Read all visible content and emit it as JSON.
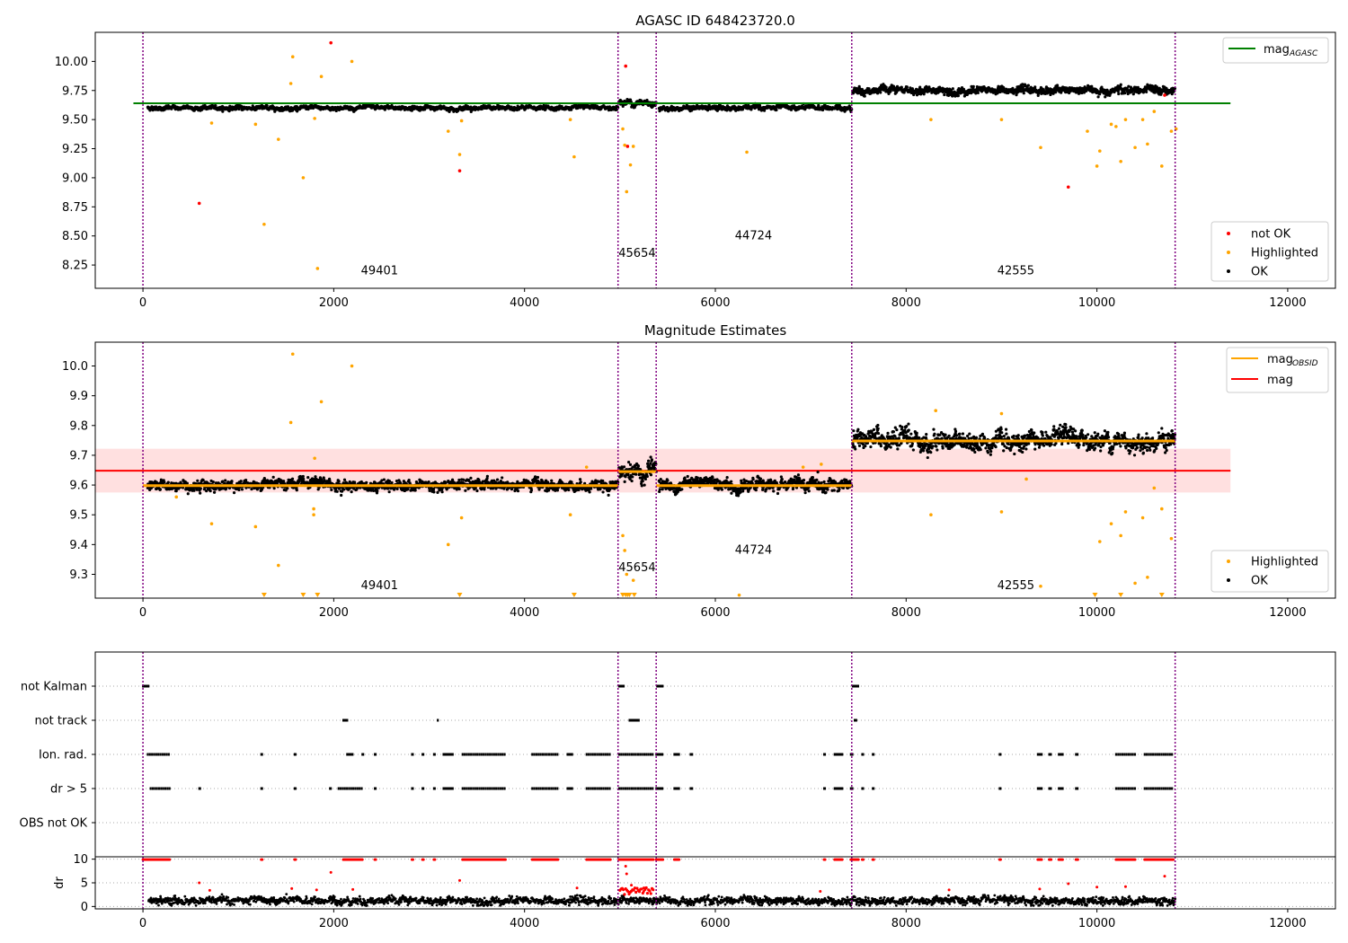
{
  "chart_data": [
    {
      "type": "scatter",
      "title": "AGASC ID 648423720.0",
      "xlim": [
        -500,
        12500
      ],
      "ylim": [
        8.05,
        10.25
      ],
      "xticks": [
        0,
        2000,
        4000,
        6000,
        8000,
        10000,
        12000
      ],
      "yticks": [
        8.25,
        8.5,
        8.75,
        9.0,
        9.25,
        9.5,
        9.75,
        10.0
      ],
      "ytick_labels": [
        "8.25",
        "8.50",
        "8.75",
        "9.00",
        "9.25",
        "9.50",
        "9.75",
        "10.00"
      ],
      "xtick_labels": [
        "0",
        "2000",
        "4000",
        "6000",
        "8000",
        "10000",
        "12000"
      ],
      "obs_boundaries": [
        0,
        4980,
        5380,
        7430,
        10820
      ],
      "obs_labels": [
        {
          "text": "49401",
          "x": 2480,
          "y": 8.17
        },
        {
          "text": "45654",
          "x": 5180,
          "y": 8.32
        },
        {
          "text": "44724",
          "x": 6400,
          "y": 8.47
        },
        {
          "text": "42555",
          "x": 9150,
          "y": 8.17
        }
      ],
      "mag_agasc": 9.64,
      "mag_agasc_xrange": [
        0,
        11400
      ],
      "ok_segments": [
        {
          "x0": 50,
          "x1": 4980,
          "mean": 9.6,
          "sd": 0.012
        },
        {
          "x0": 4990,
          "x1": 5380,
          "mean": 9.645,
          "sd": 0.02
        },
        {
          "x0": 5410,
          "x1": 7430,
          "mean": 9.6,
          "sd": 0.014
        },
        {
          "x0": 7440,
          "x1": 10820,
          "mean": 9.75,
          "sd": 0.022
        }
      ],
      "highlighted_points": [
        [
          1270,
          8.6
        ],
        [
          1680,
          9.0
        ],
        [
          1830,
          8.22
        ],
        [
          1570,
          10.04
        ],
        [
          2190,
          10.0
        ],
        [
          1550,
          9.81
        ],
        [
          1870,
          9.87
        ],
        [
          1800,
          9.51
        ],
        [
          1420,
          9.33
        ],
        [
          3200,
          9.4
        ],
        [
          3320,
          9.2
        ],
        [
          3340,
          9.49
        ],
        [
          4520,
          9.18
        ],
        [
          4480,
          9.5
        ],
        [
          5030,
          9.42
        ],
        [
          5050,
          9.28
        ],
        [
          5070,
          8.88
        ],
        [
          5110,
          9.11
        ],
        [
          5140,
          9.27
        ],
        [
          6330,
          9.22
        ],
        [
          8260,
          9.5
        ],
        [
          9000,
          9.5
        ],
        [
          9410,
          9.26
        ],
        [
          10000,
          9.1
        ],
        [
          10030,
          9.23
        ],
        [
          10150,
          9.46
        ],
        [
          10250,
          9.14
        ],
        [
          10300,
          9.5
        ],
        [
          10400,
          9.26
        ],
        [
          10530,
          9.29
        ],
        [
          10680,
          9.1
        ],
        [
          10780,
          9.4
        ],
        [
          10830,
          9.42
        ],
        [
          10600,
          9.57
        ],
        [
          10480,
          9.5
        ],
        [
          9900,
          9.4
        ],
        [
          10200,
          9.44
        ],
        [
          720,
          9.47
        ],
        [
          1180,
          9.46
        ]
      ],
      "notok_points": [
        [
          590,
          8.78
        ],
        [
          1970,
          10.16
        ],
        [
          3320,
          9.06
        ],
        [
          5060,
          9.96
        ],
        [
          9700,
          8.92
        ],
        [
          10710,
          9.71
        ],
        [
          5080,
          9.27
        ]
      ],
      "legend_line": [
        {
          "label": "mag",
          "sub": "AGASC",
          "color": "#008000"
        }
      ],
      "legend_points": [
        {
          "label": "not OK",
          "color": "#ff0000"
        },
        {
          "label": "Highlighted",
          "color": "#ffa500"
        },
        {
          "label": "OK",
          "color": "#000000"
        }
      ]
    },
    {
      "type": "scatter",
      "title": "Magnitude Estimates",
      "xlim": [
        -500,
        12500
      ],
      "ylim": [
        9.22,
        10.08
      ],
      "xticks": [
        0,
        2000,
        4000,
        6000,
        8000,
        10000,
        12000
      ],
      "xtick_labels": [
        "0",
        "2000",
        "4000",
        "6000",
        "8000",
        "10000",
        "12000"
      ],
      "yticks": [
        9.3,
        9.4,
        9.5,
        9.6,
        9.7,
        9.8,
        9.9,
        10.0
      ],
      "ytick_labels": [
        "9.3",
        "9.4",
        "9.5",
        "9.6",
        "9.7",
        "9.8",
        "9.9",
        "10.0"
      ],
      "obs_boundaries": [
        0,
        4980,
        5380,
        7430,
        10820
      ],
      "obs_labels": [
        {
          "text": "49401",
          "x": 2480,
          "y": 9.25
        },
        {
          "text": "45654",
          "x": 5180,
          "y": 9.31
        },
        {
          "text": "44724",
          "x": 6400,
          "y": 9.37
        },
        {
          "text": "42555",
          "x": 9150,
          "y": 9.25
        }
      ],
      "mag": 9.648,
      "mag_band": [
        9.575,
        9.722
      ],
      "mag_xrange": [
        0,
        11400
      ],
      "mag_obsid": [
        {
          "x0": 0,
          "x1": 4980,
          "value": 9.598
        },
        {
          "x0": 4980,
          "x1": 5380,
          "value": 9.645
        },
        {
          "x0": 5380,
          "x1": 7430,
          "value": 9.598
        },
        {
          "x0": 7430,
          "x1": 10820,
          "value": 9.748
        }
      ],
      "ok_segments": [
        {
          "x0": 50,
          "x1": 4980,
          "mean": 9.6,
          "sd": 0.012
        },
        {
          "x0": 4990,
          "x1": 5380,
          "mean": 9.645,
          "sd": 0.02
        },
        {
          "x0": 5410,
          "x1": 7430,
          "mean": 9.6,
          "sd": 0.014
        },
        {
          "x0": 7440,
          "x1": 10820,
          "mean": 9.75,
          "sd": 0.022
        }
      ],
      "highlighted_points": [
        [
          1570,
          10.04
        ],
        [
          2190,
          10.0
        ],
        [
          1550,
          9.81
        ],
        [
          1870,
          9.88
        ],
        [
          1800,
          9.69
        ],
        [
          1790,
          9.52
        ],
        [
          1790,
          9.5
        ],
        [
          1420,
          9.33
        ],
        [
          3200,
          9.4
        ],
        [
          3340,
          9.49
        ],
        [
          4480,
          9.5
        ],
        [
          5030,
          9.43
        ],
        [
          5050,
          9.38
        ],
        [
          5070,
          9.3
        ],
        [
          5140,
          9.28
        ],
        [
          1180,
          9.46
        ],
        [
          720,
          9.47
        ],
        [
          8260,
          9.5
        ],
        [
          9000,
          9.51
        ],
        [
          9410,
          9.26
        ],
        [
          10030,
          9.41
        ],
        [
          10150,
          9.47
        ],
        [
          10250,
          9.43
        ],
        [
          10300,
          9.51
        ],
        [
          10400,
          9.27
        ],
        [
          10530,
          9.29
        ],
        [
          10480,
          9.49
        ],
        [
          10780,
          9.42
        ],
        [
          10600,
          9.59
        ],
        [
          10680,
          9.52
        ],
        [
          9000,
          9.84
        ],
        [
          8310,
          9.85
        ],
        [
          9260,
          9.62
        ],
        [
          7110,
          9.67
        ],
        [
          6920,
          9.66
        ],
        [
          4650,
          9.66
        ],
        [
          350,
          9.56
        ],
        [
          6250,
          9.23
        ]
      ],
      "highlighted_clipped_x": [
        1270,
        1680,
        1830,
        3320,
        4520,
        5030,
        5060,
        5080,
        5100,
        5150,
        9980,
        10250,
        10680
      ],
      "legend_line": [
        {
          "label": "mag",
          "sub": "OBSID",
          "color": "#ffa500"
        },
        {
          "label": "mag",
          "sub": "",
          "color": "#ff0000"
        }
      ],
      "legend_points": [
        {
          "label": "Highlighted",
          "color": "#ffa500"
        },
        {
          "label": "OK",
          "color": "#000000"
        }
      ]
    },
    {
      "type": "scatter",
      "title": "",
      "xlim": [
        -500,
        12500
      ],
      "xticks": [
        0,
        2000,
        4000,
        6000,
        8000,
        10000,
        12000
      ],
      "xtick_labels": [
        "0",
        "2000",
        "4000",
        "6000",
        "8000",
        "10000",
        "12000"
      ],
      "flag_rows": [
        "not Kalman",
        "not track",
        "Ion. rad.",
        "dr > 5",
        "OBS not OK"
      ],
      "obs_boundaries": [
        0,
        4980,
        5380,
        7430,
        10820
      ],
      "flags": {
        "not Kalman": [
          [
            0,
            60
          ],
          [
            4990,
            5040
          ],
          [
            5390,
            5450
          ],
          [
            7440,
            7500
          ]
        ],
        "not track": [
          [
            2100,
            2140
          ],
          [
            3090,
            3090
          ],
          [
            5100,
            5200
          ],
          [
            7460,
            7480
          ]
        ],
        "Ion. rad.": [
          [
            50,
            280
          ],
          [
            1240,
            1250
          ],
          [
            1590,
            1600
          ],
          [
            2140,
            2200
          ],
          [
            2300,
            2310
          ],
          [
            2430,
            2440
          ],
          [
            2820,
            2830
          ],
          [
            2930,
            2940
          ],
          [
            3050,
            3060
          ],
          [
            3150,
            3250
          ],
          [
            3350,
            3800
          ],
          [
            4080,
            4350
          ],
          [
            4450,
            4500
          ],
          [
            4650,
            4900
          ],
          [
            4990,
            5350
          ],
          [
            5380,
            5450
          ],
          [
            5570,
            5620
          ],
          [
            5740,
            5760
          ],
          [
            7140,
            7150
          ],
          [
            7250,
            7330
          ],
          [
            7420,
            7440
          ],
          [
            7540,
            7550
          ],
          [
            7650,
            7660
          ],
          [
            8980,
            8990
          ],
          [
            9380,
            9420
          ],
          [
            9500,
            9520
          ],
          [
            9600,
            9640
          ],
          [
            9780,
            9800
          ],
          [
            10200,
            10400
          ],
          [
            10500,
            10800
          ]
        ],
        "dr > 5": [
          [
            80,
            280
          ],
          [
            590,
            600
          ],
          [
            1240,
            1250
          ],
          [
            1590,
            1600
          ],
          [
            1960,
            1970
          ],
          [
            2050,
            2300
          ],
          [
            2430,
            2440
          ],
          [
            2820,
            2830
          ],
          [
            2930,
            2940
          ],
          [
            3050,
            3060
          ],
          [
            3150,
            3250
          ],
          [
            3350,
            3800
          ],
          [
            4080,
            4350
          ],
          [
            4450,
            4500
          ],
          [
            4650,
            4900
          ],
          [
            4990,
            5350
          ],
          [
            5380,
            5450
          ],
          [
            5570,
            5620
          ],
          [
            5740,
            5760
          ],
          [
            7140,
            7150
          ],
          [
            7250,
            7330
          ],
          [
            7420,
            7440
          ],
          [
            7540,
            7550
          ],
          [
            7650,
            7660
          ],
          [
            8980,
            8990
          ],
          [
            9380,
            9420
          ],
          [
            9500,
            9520
          ],
          [
            9600,
            9640
          ],
          [
            9780,
            9800
          ],
          [
            10200,
            10400
          ],
          [
            10500,
            10800
          ]
        ],
        "OBS not OK": []
      }
    },
    {
      "type": "scatter",
      "title": "",
      "xlim": [
        -500,
        12500
      ],
      "ylim": [
        -0.5,
        10.5
      ],
      "ylabel": "dr",
      "yticks": [
        0,
        5,
        10
      ],
      "ytick_labels": [
        "0",
        "5",
        "10"
      ],
      "xticks": [
        0,
        2000,
        4000,
        6000,
        8000,
        10000,
        12000
      ],
      "xtick_labels": [
        "0",
        "2000",
        "4000",
        "6000",
        "8000",
        "10000",
        "12000"
      ],
      "obs_boundaries": [
        0,
        4980,
        5380,
        7430,
        10820
      ],
      "dr_ok_mean": 1.2,
      "dr_ok_range": [
        0.2,
        2.6
      ],
      "dr_clipped_x": [
        [
          0,
          280
        ],
        [
          1240,
          1250
        ],
        [
          1590,
          1600
        ],
        [
          2100,
          2300
        ],
        [
          2430,
          2440
        ],
        [
          2820,
          2830
        ],
        [
          2930,
          2940
        ],
        [
          3050,
          3060
        ],
        [
          3350,
          3800
        ],
        [
          4080,
          4350
        ],
        [
          4650,
          4900
        ],
        [
          4990,
          5350
        ],
        [
          5380,
          5450
        ],
        [
          5570,
          5620
        ],
        [
          7140,
          7150
        ],
        [
          7250,
          7330
        ],
        [
          7420,
          7500
        ],
        [
          7540,
          7550
        ],
        [
          7650,
          7660
        ],
        [
          8980,
          8990
        ],
        [
          9380,
          9420
        ],
        [
          9500,
          9520
        ],
        [
          9600,
          9640
        ],
        [
          9780,
          9800
        ],
        [
          10200,
          10400
        ],
        [
          10500,
          10800
        ]
      ],
      "dr_high_points": [
        [
          590,
          5.0
        ],
        [
          1970,
          7.2
        ],
        [
          1560,
          3.8
        ],
        [
          3320,
          5.5
        ],
        [
          5060,
          8.5
        ],
        [
          5070,
          6.9
        ],
        [
          5100,
          3.0
        ],
        [
          5120,
          4.5
        ],
        [
          5250,
          3.2
        ],
        [
          9700,
          4.8
        ],
        [
          10710,
          6.4
        ],
        [
          8450,
          3.5
        ],
        [
          9400,
          3.7
        ],
        [
          10000,
          4.1
        ],
        [
          10300,
          4.2
        ],
        [
          1820,
          3.5
        ],
        [
          2200,
          3.6
        ],
        [
          4550,
          3.9
        ],
        [
          700,
          3.4
        ],
        [
          7100,
          3.2
        ]
      ]
    }
  ]
}
